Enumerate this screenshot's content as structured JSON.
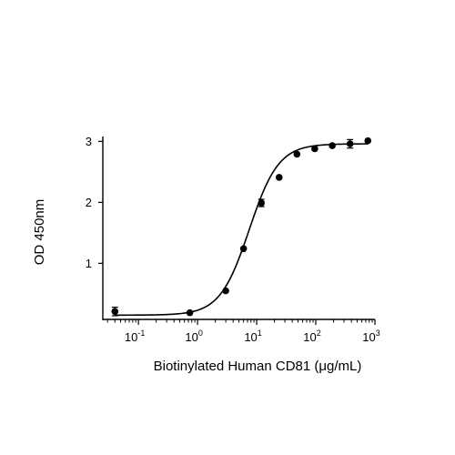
{
  "chart_data": {
    "type": "scatter",
    "title": "",
    "xlabel": "Biotinylated Human CD81 (μg/mL)",
    "ylabel": "OD 450nm",
    "x_scale": "log",
    "xlim": [
      0.025,
      1000
    ],
    "ylim": [
      0.08,
      3.08
    ],
    "grid": false,
    "legend": "none",
    "y_ticks": [
      1,
      2,
      3
    ],
    "x_ticks": [
      {
        "value": 0.1,
        "base": "10",
        "exp": "-1"
      },
      {
        "value": 1,
        "base": "10",
        "exp": "0"
      },
      {
        "value": 10,
        "base": "10",
        "exp": "1"
      },
      {
        "value": 100,
        "base": "10",
        "exp": "2"
      },
      {
        "value": 1000,
        "base": "10",
        "exp": "3"
      }
    ],
    "series": [
      {
        "points": [
          {
            "x": 0.04,
            "y": 0.21,
            "err": 0.07
          },
          {
            "x": 0.74,
            "y": 0.19,
            "err": 0.0
          },
          {
            "x": 3.0,
            "y": 0.55,
            "err": 0.0
          },
          {
            "x": 6.0,
            "y": 1.24,
            "err": 0.0
          },
          {
            "x": 12.0,
            "y": 1.99,
            "err": 0.06
          },
          {
            "x": 24.0,
            "y": 2.41,
            "err": 0.0
          },
          {
            "x": 48.0,
            "y": 2.79,
            "err": 0.0
          },
          {
            "x": 96.0,
            "y": 2.88,
            "err": 0.0
          },
          {
            "x": 190.0,
            "y": 2.93,
            "err": 0.0
          },
          {
            "x": 380.0,
            "y": 2.96,
            "err": 0.07
          },
          {
            "x": 760.0,
            "y": 3.01,
            "err": 0.0
          }
        ],
        "fit": {
          "model": "4PL",
          "bottom": 0.15,
          "top": 2.96,
          "ec50": 7.5,
          "hill": 1.75
        }
      }
    ]
  }
}
